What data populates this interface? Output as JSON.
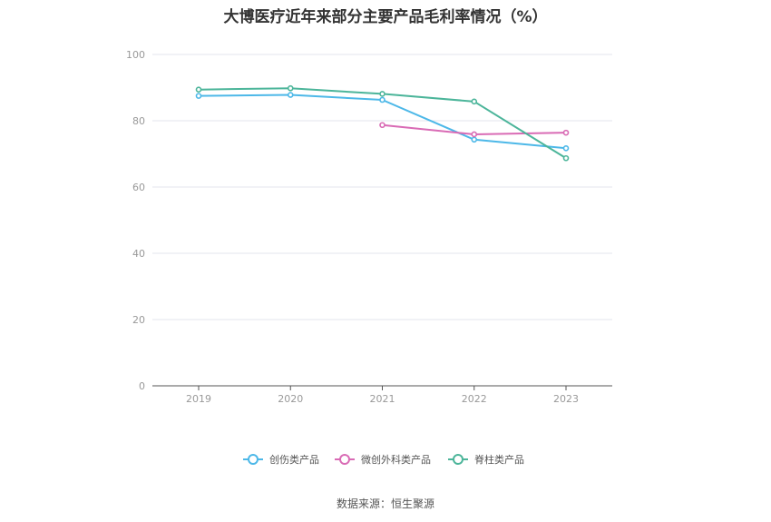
{
  "chart_data": {
    "type": "line",
    "title": "大博医疗近年来部分主要产品毛利率情况（%）",
    "categories": [
      "2019",
      "2020",
      "2021",
      "2022",
      "2023"
    ],
    "ylim": [
      0,
      100
    ],
    "yticks": [
      "0",
      "20",
      "40",
      "60",
      "80",
      "100"
    ],
    "grid": true,
    "legend_position": "bottom",
    "series": [
      {
        "name": "创伤类产品",
        "color": "#4db8e8",
        "values": [
          87.5,
          87.8,
          86.3,
          74.3,
          71.7
        ]
      },
      {
        "name": "微创外科类产品",
        "color": "#d96bb5",
        "values": [
          null,
          null,
          78.7,
          75.9,
          76.4
        ]
      },
      {
        "name": "脊柱类产品",
        "color": "#4cb59a",
        "values": [
          89.4,
          89.8,
          88.1,
          85.8,
          68.7
        ]
      }
    ]
  },
  "source": "数据来源：恒生聚源"
}
